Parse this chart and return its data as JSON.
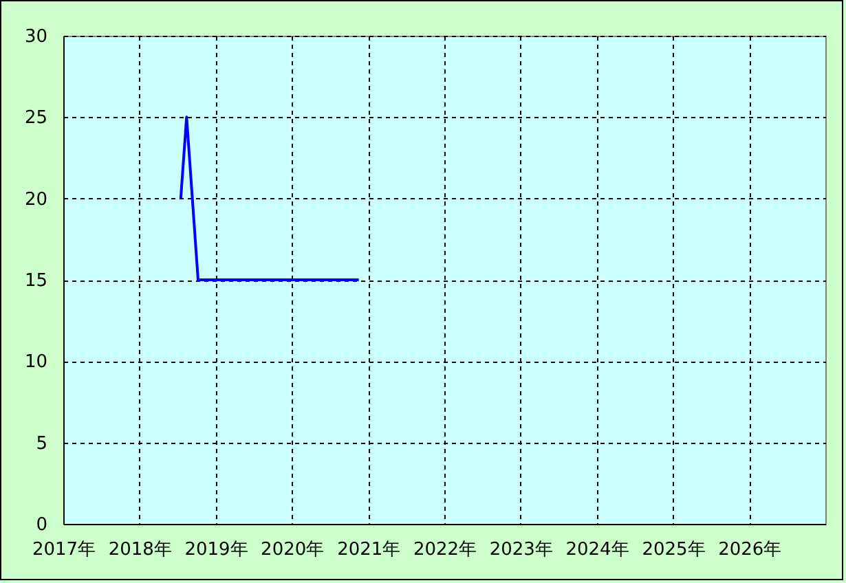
{
  "chart_data": {
    "type": "line",
    "x": [
      "2018-07-18",
      "2018-08-15",
      "2018-10-09",
      "2020-11-17"
    ],
    "values": [
      20,
      25,
      15,
      15
    ],
    "color": "#0000ff",
    "xlim": [
      "2017",
      "2027"
    ],
    "xticks": [
      {
        "value": "2017",
        "label": "2017年"
      },
      {
        "value": "2018",
        "label": "2018年"
      },
      {
        "value": "2019",
        "label": "2019年"
      },
      {
        "value": "2020",
        "label": "2020年"
      },
      {
        "value": "2021",
        "label": "2021年"
      },
      {
        "value": "2022",
        "label": "2022年"
      },
      {
        "value": "2023",
        "label": "2023年"
      },
      {
        "value": "2024",
        "label": "2024年"
      },
      {
        "value": "2025",
        "label": "2025年"
      },
      {
        "value": "2026",
        "label": "2026年"
      }
    ],
    "ylim": [
      0,
      30
    ],
    "yticks": [
      0,
      5,
      10,
      15,
      20,
      25,
      30
    ],
    "grid": true,
    "line_style": "solid"
  }
}
